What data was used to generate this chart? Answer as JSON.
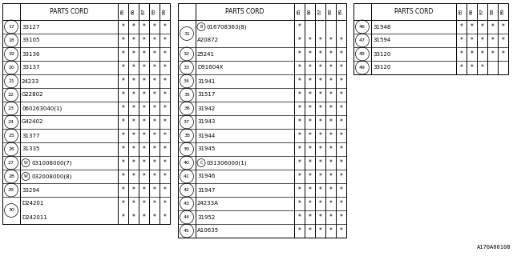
{
  "bg_color": "#ffffff",
  "line_color": "#000000",
  "text_color": "#000000",
  "col_headers": [
    "85",
    "86",
    "87",
    "88",
    "89"
  ],
  "table1": {
    "title": "PARTS CORD",
    "rows": [
      {
        "num": "17",
        "part": "33127",
        "prefix": "",
        "marks": [
          1,
          1,
          1,
          1,
          1
        ]
      },
      {
        "num": "18",
        "part": "33105",
        "prefix": "",
        "marks": [
          1,
          1,
          1,
          1,
          1
        ]
      },
      {
        "num": "19",
        "part": "33136",
        "prefix": "",
        "marks": [
          1,
          1,
          1,
          1,
          1
        ]
      },
      {
        "num": "20",
        "part": "33137",
        "prefix": "",
        "marks": [
          1,
          1,
          1,
          1,
          1
        ]
      },
      {
        "num": "21",
        "part": "24233",
        "prefix": "",
        "marks": [
          1,
          1,
          1,
          1,
          1
        ]
      },
      {
        "num": "22",
        "part": "G22802",
        "prefix": "",
        "marks": [
          1,
          1,
          1,
          1,
          1
        ]
      },
      {
        "num": "23",
        "part": "060263040(1)",
        "prefix": "",
        "marks": [
          1,
          1,
          1,
          1,
          1
        ]
      },
      {
        "num": "24",
        "part": "G42402",
        "prefix": "",
        "marks": [
          1,
          1,
          1,
          1,
          1
        ]
      },
      {
        "num": "25",
        "part": "31377",
        "prefix": "",
        "marks": [
          1,
          1,
          1,
          1,
          1
        ]
      },
      {
        "num": "26",
        "part": "31335",
        "prefix": "",
        "marks": [
          1,
          1,
          1,
          1,
          1
        ]
      },
      {
        "num": "27",
        "part": "031008000(7)",
        "prefix": "W",
        "marks": [
          1,
          1,
          1,
          1,
          1
        ]
      },
      {
        "num": "28",
        "part": "032008000(8)",
        "prefix": "W",
        "marks": [
          1,
          1,
          1,
          1,
          1
        ]
      },
      {
        "num": "29",
        "part": "33294",
        "prefix": "",
        "marks": [
          1,
          1,
          1,
          1,
          1
        ]
      },
      {
        "num": "30",
        "part": "D24201",
        "prefix": "",
        "marks": [
          1,
          1,
          1,
          1,
          1
        ],
        "double": true,
        "part2": "D242011",
        "marks2": [
          1,
          1,
          1,
          1,
          1
        ]
      }
    ]
  },
  "table2": {
    "title": "PARTS CORD",
    "rows": [
      {
        "num": "31",
        "part": "016708363(8)",
        "prefix": "B",
        "marks": [
          1,
          0,
          0,
          0,
          0
        ],
        "double": true,
        "part2": "A20872",
        "marks2": [
          1,
          1,
          1,
          1,
          1
        ]
      },
      {
        "num": "32",
        "part": "25241",
        "prefix": "",
        "marks": [
          1,
          1,
          1,
          1,
          1
        ]
      },
      {
        "num": "33",
        "part": "D91604X",
        "prefix": "",
        "marks": [
          1,
          1,
          1,
          1,
          1
        ]
      },
      {
        "num": "34",
        "part": "31941",
        "prefix": "",
        "marks": [
          1,
          1,
          1,
          1,
          1
        ]
      },
      {
        "num": "35",
        "part": "31517",
        "prefix": "",
        "marks": [
          1,
          1,
          1,
          1,
          1
        ]
      },
      {
        "num": "36",
        "part": "31942",
        "prefix": "",
        "marks": [
          1,
          1,
          1,
          1,
          1
        ]
      },
      {
        "num": "37",
        "part": "31943",
        "prefix": "",
        "marks": [
          1,
          1,
          1,
          1,
          1
        ]
      },
      {
        "num": "38",
        "part": "31944",
        "prefix": "",
        "marks": [
          1,
          1,
          1,
          1,
          1
        ]
      },
      {
        "num": "39",
        "part": "31945",
        "prefix": "",
        "marks": [
          1,
          1,
          1,
          1,
          1
        ]
      },
      {
        "num": "40",
        "part": "031306000(1)",
        "prefix": "C",
        "marks": [
          1,
          1,
          1,
          1,
          1
        ]
      },
      {
        "num": "41",
        "part": "31946",
        "prefix": "",
        "marks": [
          1,
          1,
          1,
          1,
          1
        ]
      },
      {
        "num": "42",
        "part": "31947",
        "prefix": "",
        "marks": [
          1,
          1,
          1,
          1,
          1
        ]
      },
      {
        "num": "43",
        "part": "24233A",
        "prefix": "",
        "marks": [
          1,
          1,
          1,
          1,
          1
        ]
      },
      {
        "num": "44",
        "part": "31952",
        "prefix": "",
        "marks": [
          1,
          1,
          1,
          1,
          1
        ]
      },
      {
        "num": "45",
        "part": "A10635",
        "prefix": "",
        "marks": [
          1,
          1,
          1,
          1,
          1
        ]
      }
    ]
  },
  "table3": {
    "title": "PARTS CORD",
    "rows": [
      {
        "num": "46",
        "part": "31948",
        "prefix": "",
        "marks": [
          1,
          1,
          1,
          1,
          1
        ]
      },
      {
        "num": "47",
        "part": "31594",
        "prefix": "",
        "marks": [
          1,
          1,
          1,
          1,
          1
        ]
      },
      {
        "num": "48",
        "part": "33120",
        "prefix": "",
        "marks": [
          1,
          1,
          1,
          1,
          1
        ]
      },
      {
        "num": "49",
        "part": "33120",
        "prefix": "",
        "marks": [
          1,
          1,
          1,
          0,
          0
        ]
      }
    ]
  },
  "footer": "A170A00108"
}
